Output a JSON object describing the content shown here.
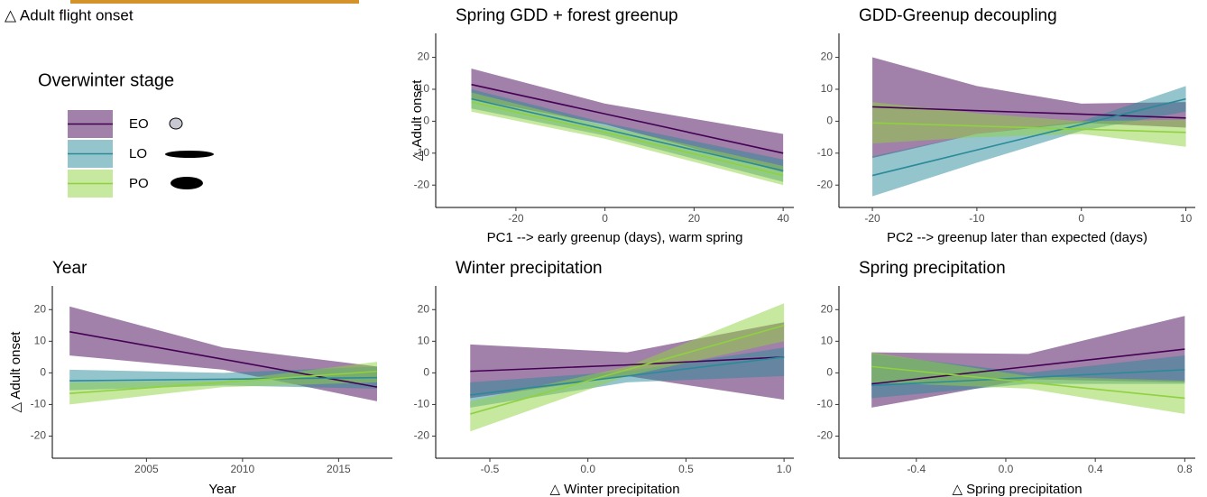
{
  "figure_label": "△ Adult flight onset",
  "legend_title": "Overwinter stage",
  "chart_data": [
    {
      "type": "line",
      "title": "Spring GDD + forest greenup",
      "xlabel": "PC1 --> early greenup (days), warm spring",
      "ylabel": "△ Adult onset",
      "x": [
        -30,
        0,
        40
      ],
      "xlim": [
        -38,
        42.4
      ],
      "xticks": [
        -20,
        0,
        20,
        40
      ],
      "ylim": [
        -27,
        27.5
      ],
      "yticks": [
        -20,
        -10,
        0,
        10,
        20
      ],
      "series": [
        {
          "name": "EO",
          "color": "#440154",
          "values": [
            11.5,
            2.3,
            -10
          ],
          "lower": [
            7,
            -1,
            -16
          ],
          "upper": [
            16.5,
            5.5,
            -4
          ]
        },
        {
          "name": "LO",
          "color": "#2a8a9a",
          "values": [
            7,
            -2.5,
            -15.5
          ],
          "lower": [
            4,
            -4.5,
            -19
          ],
          "upper": [
            10,
            -0.5,
            -12
          ]
        },
        {
          "name": "PO",
          "color": "#8fd13f",
          "values": [
            6,
            -3.5,
            -17
          ],
          "lower": [
            3,
            -5.5,
            -20
          ],
          "upper": [
            9,
            -1.5,
            -14
          ]
        }
      ]
    },
    {
      "type": "line",
      "title": "GDD-Greenup decoupling",
      "xlabel": "PC2 --> greenup later than expected (days)",
      "x": [
        -20,
        -10,
        0,
        10
      ],
      "xlim": [
        -23.2,
        10.9
      ],
      "xticks": [
        -20,
        -10,
        0,
        10
      ],
      "ylim": [
        -27,
        27.5
      ],
      "yticks": [
        -20,
        -10,
        0,
        10,
        20
      ],
      "series": [
        {
          "name": "EO",
          "color": "#440154",
          "values": [
            4.5,
            3.3,
            2.2,
            1
          ],
          "lower": [
            -11.5,
            -4,
            -0.5,
            -2
          ],
          "upper": [
            20,
            11,
            5.5,
            6
          ]
        },
        {
          "name": "LO",
          "color": "#2a8a9a",
          "values": [
            -17,
            -9,
            -1,
            7
          ],
          "lower": [
            -23.5,
            -13,
            -3,
            3
          ],
          "upper": [
            -11,
            -4,
            0,
            11
          ]
        },
        {
          "name": "PO",
          "color": "#8fd13f",
          "values": [
            -0.5,
            -1.5,
            -2.5,
            -3.5
          ],
          "lower": [
            -7,
            -5,
            -4,
            -8
          ],
          "upper": [
            6,
            2.5,
            0,
            0.5
          ]
        }
      ]
    },
    {
      "type": "line",
      "title": "Year",
      "xlabel": "Year",
      "ylabel": "△ Adult onset",
      "x": [
        2001,
        2009,
        2017
      ],
      "xlim": [
        2000.1,
        2017.8
      ],
      "xticks": [
        2005,
        2010,
        2015
      ],
      "ylim": [
        -27,
        27.5
      ],
      "yticks": [
        -20,
        -10,
        0,
        10,
        20
      ],
      "series": [
        {
          "name": "EO",
          "color": "#440154",
          "values": [
            13,
            4.3,
            -4.5
          ],
          "lower": [
            5.5,
            1,
            -9
          ],
          "upper": [
            21,
            8,
            2
          ]
        },
        {
          "name": "LO",
          "color": "#2a8a9a",
          "values": [
            -2.5,
            -2,
            -1.5
          ],
          "lower": [
            -5.5,
            -4,
            -5
          ],
          "upper": [
            1,
            0,
            2
          ]
        },
        {
          "name": "PO",
          "color": "#8fd13f",
          "values": [
            -6.5,
            -3,
            0.5
          ],
          "lower": [
            -10,
            -4.5,
            -3
          ],
          "upper": [
            -3,
            -2.5,
            3.5
          ]
        }
      ]
    },
    {
      "type": "line",
      "title": "Winter precipitation",
      "xlabel": "△ Winter precipitation",
      "x": [
        -0.6,
        0.2,
        1.0
      ],
      "xlim": [
        -0.776,
        1.05
      ],
      "xticks": [
        {
          "value": -0.5,
          "label": "-0.5"
        },
        {
          "value": 0,
          "label": "0.0"
        },
        {
          "value": 0.5,
          "label": "0.5"
        },
        {
          "value": 1,
          "label": "1.0"
        }
      ],
      "ylim": [
        -27,
        27.5
      ],
      "yticks": [
        -20,
        -10,
        0,
        10,
        20
      ],
      "series": [
        {
          "name": "EO",
          "color": "#440154",
          "values": [
            0.5,
            2.5,
            5
          ],
          "lower": [
            -8,
            -1,
            -8.5
          ],
          "upper": [
            9,
            6.5,
            16
          ]
        },
        {
          "name": "LO",
          "color": "#2a8a9a",
          "values": [
            -7,
            -1,
            5
          ],
          "lower": [
            -11,
            -3,
            -1
          ],
          "upper": [
            -3,
            0.5,
            8
          ]
        },
        {
          "name": "PO",
          "color": "#8fd13f",
          "values": [
            -13,
            1,
            15
          ],
          "lower": [
            -18.5,
            -1,
            10
          ],
          "upper": [
            -9,
            2,
            22
          ]
        }
      ]
    },
    {
      "type": "line",
      "title": "Spring precipitation",
      "xlabel": "△ Spring precipitation",
      "x": [
        -0.6,
        0.1,
        0.8
      ],
      "xlim": [
        -0.746,
        0.847
      ],
      "xticks": [
        -0.4,
        {
          "value": 0,
          "label": "0.0"
        },
        0.4,
        0.8
      ],
      "ylim": [
        -27,
        27.5
      ],
      "yticks": [
        -20,
        -10,
        0,
        10,
        20
      ],
      "series": [
        {
          "name": "EO",
          "color": "#440154",
          "values": [
            -3.5,
            2,
            7.5
          ],
          "lower": [
            -11,
            -2,
            -3
          ],
          "upper": [
            6.5,
            6,
            18
          ]
        },
        {
          "name": "LO",
          "color": "#2a8a9a",
          "values": [
            -4,
            -1.5,
            1
          ],
          "lower": [
            -8,
            -3.5,
            -3.5
          ],
          "upper": [
            6,
            0,
            5.5
          ]
        },
        {
          "name": "PO",
          "color": "#8fd13f",
          "values": [
            2,
            -3,
            -8
          ],
          "lower": [
            -3,
            -5,
            -13
          ],
          "upper": [
            6.5,
            -1,
            -2.5
          ]
        }
      ]
    }
  ]
}
